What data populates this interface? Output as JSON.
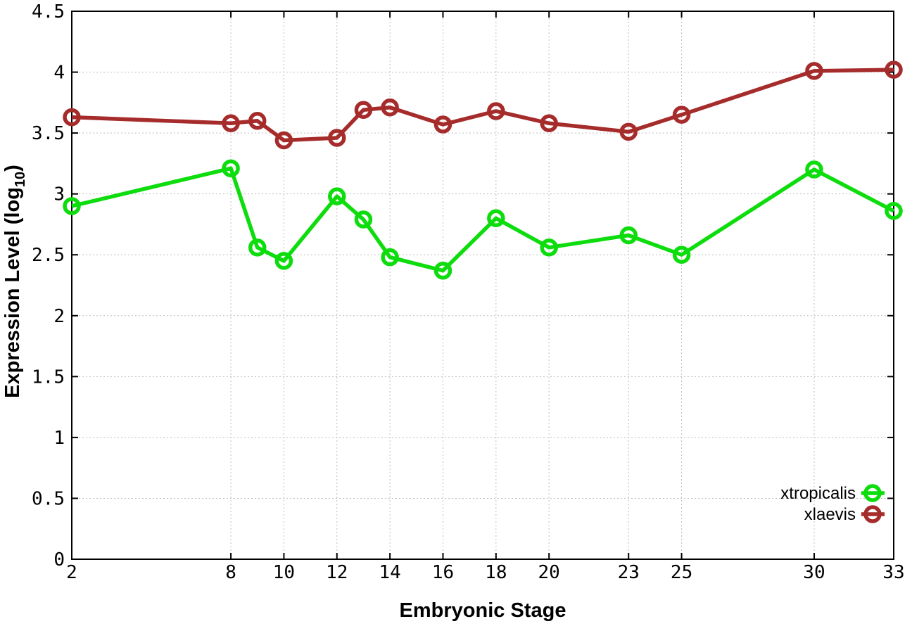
{
  "chart_data": {
    "type": "line",
    "title": "",
    "xlabel": "Embryonic Stage",
    "ylabel": "Expression Level (log10)",
    "ylabel_parts": {
      "prefix": "Expression Level (log",
      "subscript": "10",
      "suffix": ")"
    },
    "xlim": [
      2,
      33
    ],
    "ylim": [
      0,
      4.5
    ],
    "x_ticks": [
      2,
      8,
      10,
      12,
      14,
      16,
      18,
      20,
      23,
      25,
      30,
      33
    ],
    "y_ticks": [
      0,
      0.5,
      1,
      1.5,
      2,
      2.5,
      3,
      3.5,
      4,
      4.5
    ],
    "grid": true,
    "legend_position": "bottom-right",
    "x": [
      2,
      8,
      9,
      10,
      12,
      13,
      14,
      16,
      18,
      20,
      23,
      25,
      30,
      33
    ],
    "series": [
      {
        "name": "xtropicalis",
        "color": "#0ddc0d",
        "values": [
          2.9,
          3.21,
          2.56,
          2.45,
          2.98,
          2.79,
          2.48,
          2.37,
          2.8,
          2.56,
          2.66,
          2.5,
          3.2,
          2.86
        ]
      },
      {
        "name": "xlaevis",
        "color": "#a62c2c",
        "values": [
          3.63,
          3.58,
          3.6,
          3.44,
          3.46,
          3.69,
          3.71,
          3.57,
          3.68,
          3.58,
          3.51,
          3.65,
          4.01,
          4.02
        ]
      }
    ]
  }
}
